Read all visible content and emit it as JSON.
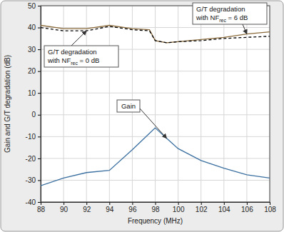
{
  "chart_data": {
    "type": "line",
    "x_label": "Frequency (MHz)",
    "y_label": "Gain and G/T degradation (dB)",
    "x": [
      88,
      90,
      92,
      94,
      96,
      97.5,
      98,
      99,
      100,
      102,
      104,
      106,
      108
    ],
    "xlim": [
      88,
      108
    ],
    "xticks": [
      88,
      90,
      92,
      94,
      96,
      98,
      100,
      102,
      104,
      106,
      108
    ],
    "ylim": [
      -40,
      50
    ],
    "yticks": [
      -40,
      -30,
      -20,
      -10,
      0,
      10,
      20,
      30,
      40,
      50
    ],
    "grid": true,
    "series": [
      {
        "color": "#8a6a3a",
        "line_style": "solid",
        "annotation": {
          "lines": [
            "G/T degradation",
            "with NF"
          ],
          "subscript": "rec",
          "after": " = 6 dB"
        },
        "values": [
          41,
          39.5,
          39.5,
          41,
          39.5,
          39,
          34,
          33,
          33.5,
          34.5,
          35.5,
          37,
          38
        ]
      },
      {
        "color": "#000000",
        "line_style": "dashed",
        "annotation": {
          "lines": [
            "G/T degradation",
            "with NF"
          ],
          "subscript": "rec",
          "after": " = 0 dB"
        },
        "values": [
          40,
          38.5,
          38.5,
          40.5,
          39,
          38.5,
          34,
          33,
          33.5,
          34,
          35,
          35.5,
          36
        ]
      },
      {
        "name": "Gain",
        "color": "#3a6fa0",
        "line_style": "solid",
        "values": [
          -32.5,
          -29,
          -26.5,
          -25.5,
          -16,
          -8.5,
          -6,
          -10.8,
          -15.5,
          -21,
          -24.5,
          -27.5,
          -29
        ]
      }
    ]
  }
}
